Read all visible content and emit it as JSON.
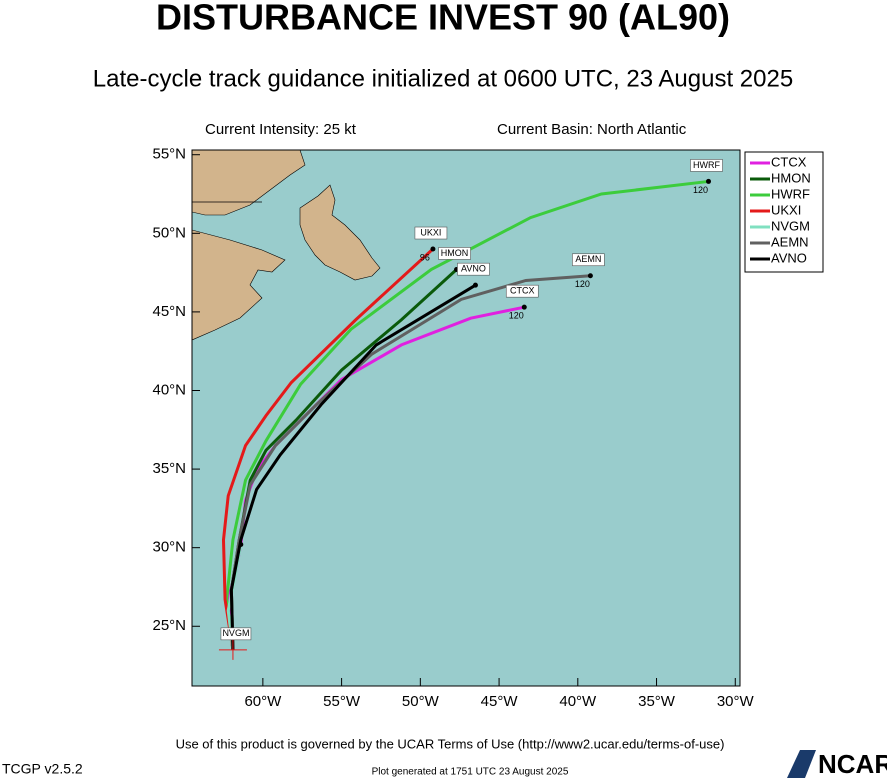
{
  "chart_data": {
    "type": "track-map",
    "title": "DISTURBANCE INVEST 90 (AL90)",
    "subtitle": "Late-cycle track guidance initialized at 0600 UTC, 23 August 2025",
    "intensity": "Current Intensity: 25 kt",
    "basin": "Current Basin: North Atlantic",
    "terms": "Use of this product is governed by the UCAR Terms of Use (http://www2.ucar.edu/terms-of-use)",
    "version": "TCGP v2.5.2",
    "generated": "Plot generated at 1751 UTC   23 August 2025",
    "logo": "NCAR",
    "xlim": [
      -64.5,
      -29.7
    ],
    "ylim": [
      21.2,
      55.3
    ],
    "xticks": [
      {
        "value": -60,
        "label": "60°W"
      },
      {
        "value": -55,
        "label": "55°W"
      },
      {
        "value": -50,
        "label": "50°W"
      },
      {
        "value": -45,
        "label": "45°W"
      },
      {
        "value": -40,
        "label": "40°W"
      },
      {
        "value": -35,
        "label": "35°W"
      },
      {
        "value": -30,
        "label": "30°W"
      }
    ],
    "yticks": [
      {
        "value": 25,
        "label": "25°N"
      },
      {
        "value": 30,
        "label": "30°N"
      },
      {
        "value": 35,
        "label": "35°N"
      },
      {
        "value": 40,
        "label": "40°N"
      },
      {
        "value": 45,
        "label": "45°N"
      },
      {
        "value": 50,
        "label": "50°N"
      },
      {
        "value": 55,
        "label": "55°N"
      }
    ],
    "series": [
      {
        "name": "CTCX",
        "color": "#e020e0",
        "end_label": "120",
        "lon": [
          -61.9,
          -62.2,
          -61.7,
          -61.4,
          -61.1,
          -60.4,
          -59.2,
          -57.6,
          -55.0,
          -51.2,
          -46.8,
          -43.4
        ],
        "lat": [
          23.5,
          26.7,
          28.6,
          30.2,
          33.0,
          34.9,
          36.5,
          38.1,
          40.7,
          42.9,
          44.6,
          45.3
        ]
      },
      {
        "name": "HMON",
        "color": "#0a5a0a",
        "lon": [
          -61.9,
          -62.0,
          -61.5,
          -60.8,
          -59.8,
          -57.9,
          -55.0,
          -51.2,
          -47.7
        ],
        "lat": [
          23.5,
          27.3,
          30.5,
          34.3,
          36.2,
          38.1,
          41.3,
          44.5,
          47.7
        ]
      },
      {
        "name": "HWRF",
        "color": "#3ccc3c",
        "end_label": "120",
        "lon": [
          -61.9,
          -62.3,
          -61.9,
          -61.1,
          -59.8,
          -57.6,
          -54.4,
          -49.3,
          -43.0,
          -38.5,
          -31.7
        ],
        "lat": [
          23.5,
          26.7,
          30.5,
          34.3,
          36.8,
          40.4,
          43.9,
          47.7,
          51.0,
          52.5,
          53.3
        ]
      },
      {
        "name": "UKXI",
        "color": "#e41a1a",
        "end_label": "96",
        "lon": [
          -61.9,
          -62.4,
          -62.5,
          -62.2,
          -61.1,
          -59.8,
          -58.2,
          -54.1,
          -49.2
        ],
        "lat": [
          23.5,
          26.7,
          30.5,
          33.3,
          36.5,
          38.4,
          40.5,
          44.5,
          49.0
        ]
      },
      {
        "name": "NVGM",
        "color": "#80e0c0",
        "lon": [
          -61.9,
          -62.2,
          -61.7,
          -61.4
        ],
        "lat": [
          23.5,
          26.0,
          28.6,
          30.2
        ]
      },
      {
        "name": "AEMN",
        "color": "#606060",
        "end_label": "120",
        "lon": [
          -61.9,
          -62.0,
          -61.5,
          -60.8,
          -59.2,
          -56.6,
          -53.1,
          -47.4,
          -43.3,
          -39.2
        ],
        "lat": [
          23.5,
          27.3,
          30.5,
          34.0,
          36.5,
          39.1,
          42.3,
          45.8,
          47.0,
          47.3
        ]
      },
      {
        "name": "AVNO",
        "color": "#000000",
        "lon": [
          -61.9,
          -62.0,
          -61.4,
          -60.4,
          -58.9,
          -56.3,
          -52.8,
          -46.5
        ],
        "lat": [
          23.5,
          27.3,
          30.5,
          33.7,
          35.9,
          39.1,
          42.9,
          46.7
        ]
      }
    ]
  }
}
